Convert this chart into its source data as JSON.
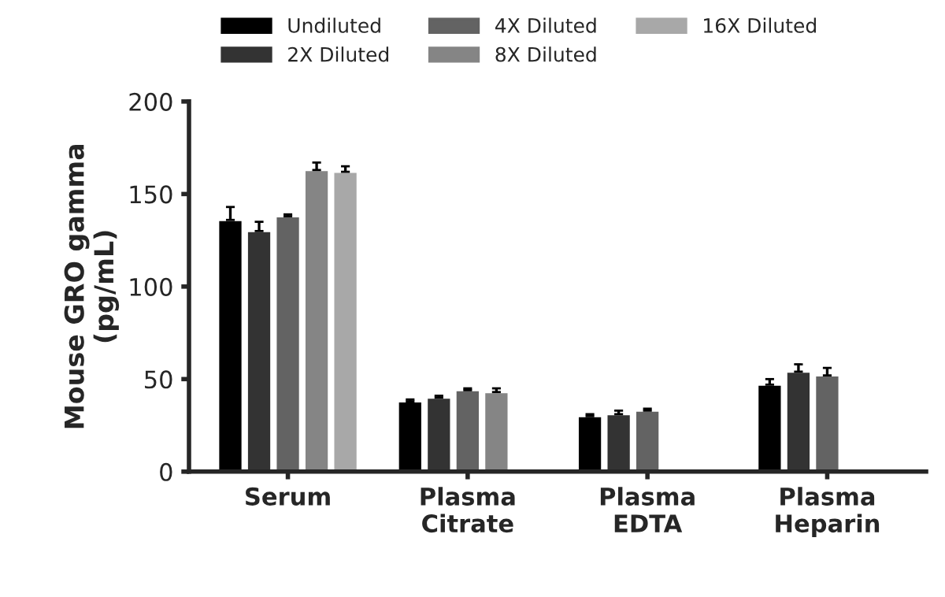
{
  "chart_data": {
    "type": "bar",
    "ylabel": "Mouse GRO gamma\n(pg/mL)",
    "categories": [
      "Serum",
      "Plasma\nCitrate",
      "Plasma\nEDTA",
      "Plasma\nHeparin"
    ],
    "series": [
      {
        "name": "Undiluted",
        "color": "#000000",
        "values": [
          136,
          38,
          30,
          47
        ],
        "errors": [
          7,
          1,
          1,
          3
        ]
      },
      {
        "name": "2X Diluted",
        "color": "#333333",
        "values": [
          130,
          40,
          31,
          54
        ],
        "errors": [
          5,
          1,
          2,
          4
        ]
      },
      {
        "name": "4X Diluted",
        "color": "#636363",
        "values": [
          138,
          44,
          33,
          52
        ],
        "errors": [
          1,
          1,
          1,
          4
        ]
      },
      {
        "name": "8X Diluted",
        "color": "#858585",
        "values": [
          163,
          43,
          null,
          null
        ],
        "errors": [
          4,
          2,
          null,
          null
        ]
      },
      {
        "name": "16X Diluted",
        "color": "#a8a8a8",
        "values": [
          162,
          null,
          null,
          null
        ],
        "errors": [
          3,
          null,
          null,
          null
        ]
      }
    ],
    "ylim": [
      0,
      200
    ],
    "yticks": [
      0,
      50,
      100,
      150,
      200
    ],
    "grid": false,
    "legend": "top"
  }
}
